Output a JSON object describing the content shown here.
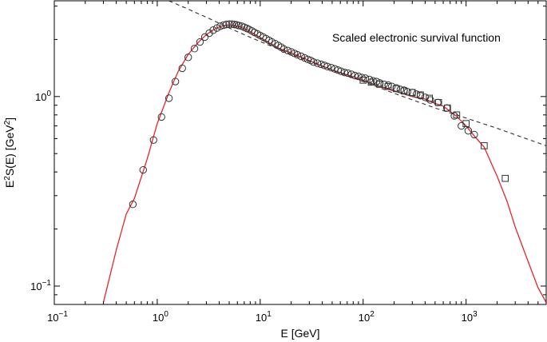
{
  "chart_data": {
    "type": "line",
    "xscale": "log",
    "yscale": "log",
    "xlim": [
      0.1,
      6000
    ],
    "ylim": [
      0.08,
      3.2
    ],
    "grid": false,
    "xlabel": {
      "base": "E",
      "unit": "GeV"
    },
    "ylabel": {
      "pre": "E",
      "pre_sup": "2",
      "mid": "S(E) [GeV",
      "unit_sup": "2",
      "post": "]"
    },
    "annotation": "Scaled electronic survival function",
    "xticks": [
      {
        "value": 0.1,
        "base": "10",
        "exp": "−1"
      },
      {
        "value": 1,
        "base": "10",
        "exp": "0"
      },
      {
        "value": 10,
        "base": "10",
        "exp": "1"
      },
      {
        "value": 100,
        "base": "10",
        "exp": "2"
      },
      {
        "value": 1000,
        "base": "10",
        "exp": "3"
      }
    ],
    "yticks": [
      {
        "value": 0.1,
        "base": "10",
        "exp": "−1"
      },
      {
        "value": 1,
        "base": "10",
        "exp": "0"
      }
    ],
    "colors": {
      "model_curve": "#e8232a",
      "power_law": "#333333",
      "markers": "#333333"
    },
    "series": [
      {
        "kind": "line",
        "style": "solid",
        "x": [
          0.3,
          0.4,
          0.5,
          0.6,
          0.8,
          1.0,
          1.3,
          1.6,
          2.0,
          2.5,
          3.0,
          3.5,
          4.0,
          4.5,
          5.0,
          5.5,
          6.0,
          6.5,
          7.0,
          8.0,
          9.0,
          10,
          12,
          15,
          20,
          30,
          50,
          70,
          100,
          150,
          200,
          300,
          400,
          500,
          600,
          800,
          1000,
          1200,
          1500,
          2000,
          2500,
          3000,
          4000,
          5000,
          6000
        ],
        "y": [
          0.082,
          0.155,
          0.24,
          0.29,
          0.47,
          0.72,
          1.05,
          1.36,
          1.67,
          1.93,
          2.12,
          2.25,
          2.33,
          2.37,
          2.38,
          2.37,
          2.35,
          2.32,
          2.28,
          2.2,
          2.12,
          2.05,
          1.93,
          1.8,
          1.7,
          1.55,
          1.38,
          1.3,
          1.22,
          1.12,
          1.07,
          1.0,
          0.97,
          0.92,
          0.89,
          0.79,
          0.7,
          0.62,
          0.54,
          0.38,
          0.28,
          0.205,
          0.135,
          0.098,
          0.082
        ]
      },
      {
        "kind": "line",
        "style": "dashed",
        "x": [
          1.3,
          2,
          3,
          5,
          7,
          10,
          20,
          50,
          100,
          200,
          500,
          1000,
          2000,
          6000
        ],
        "y": [
          3.2,
          2.89,
          2.62,
          2.3,
          2.12,
          1.95,
          1.67,
          1.38,
          1.2,
          1.04,
          0.87,
          0.77,
          0.68,
          0.55
        ]
      },
      {
        "kind": "scatter",
        "marker": "circle",
        "x": [
          0.58,
          0.73,
          0.92,
          1.1,
          1.3,
          1.5,
          1.75,
          2.0,
          2.3,
          2.6,
          2.9,
          3.2,
          3.5,
          3.8,
          4.1,
          4.4,
          4.7,
          5.0,
          5.3,
          5.6,
          5.9,
          6.2,
          6.6,
          7.0,
          7.4,
          7.8,
          8.3,
          8.8,
          9.4,
          10,
          10.7,
          11.4,
          12.2,
          13,
          14,
          15,
          16,
          17,
          18.5,
          20,
          21.5,
          23,
          25,
          27,
          29,
          31,
          33,
          36,
          39,
          42,
          45,
          49,
          53,
          57,
          61,
          66,
          71,
          77,
          83,
          90,
          97,
          105,
          115,
          125,
          135,
          145,
          160,
          175,
          190,
          210,
          230,
          250,
          270,
          300,
          330,
          360,
          400,
          450,
          530,
          650,
          770,
          900,
          1050,
          1200
        ],
        "y": [
          0.27,
          0.41,
          0.59,
          0.78,
          0.98,
          1.2,
          1.41,
          1.61,
          1.79,
          1.94,
          2.06,
          2.16,
          2.24,
          2.3,
          2.35,
          2.38,
          2.4,
          2.41,
          2.41,
          2.4,
          2.39,
          2.37,
          2.35,
          2.32,
          2.29,
          2.26,
          2.22,
          2.18,
          2.14,
          2.1,
          2.06,
          2.02,
          1.98,
          1.94,
          1.9,
          1.86,
          1.82,
          1.78,
          1.75,
          1.72,
          1.69,
          1.66,
          1.63,
          1.6,
          1.57,
          1.55,
          1.52,
          1.5,
          1.48,
          1.46,
          1.44,
          1.42,
          1.4,
          1.38,
          1.36,
          1.34,
          1.33,
          1.31,
          1.29,
          1.28,
          1.26,
          1.25,
          1.23,
          1.21,
          1.2,
          1.18,
          1.16,
          1.15,
          1.13,
          1.11,
          1.09,
          1.08,
          1.06,
          1.05,
          1.03,
          1.01,
          0.99,
          0.96,
          0.93,
          0.87,
          0.79,
          0.7,
          0.66,
          0.63
        ]
      },
      {
        "kind": "scatter",
        "marker": "square",
        "x": [
          100,
          120,
          145,
          175,
          210,
          250,
          300,
          360,
          440,
          540,
          660,
          810,
          1000,
          1500,
          2400
        ],
        "y": [
          1.22,
          1.19,
          1.16,
          1.13,
          1.1,
          1.07,
          1.05,
          1.02,
          0.98,
          0.93,
          0.87,
          0.8,
          0.72,
          0.55,
          0.37
        ]
      }
    ]
  }
}
